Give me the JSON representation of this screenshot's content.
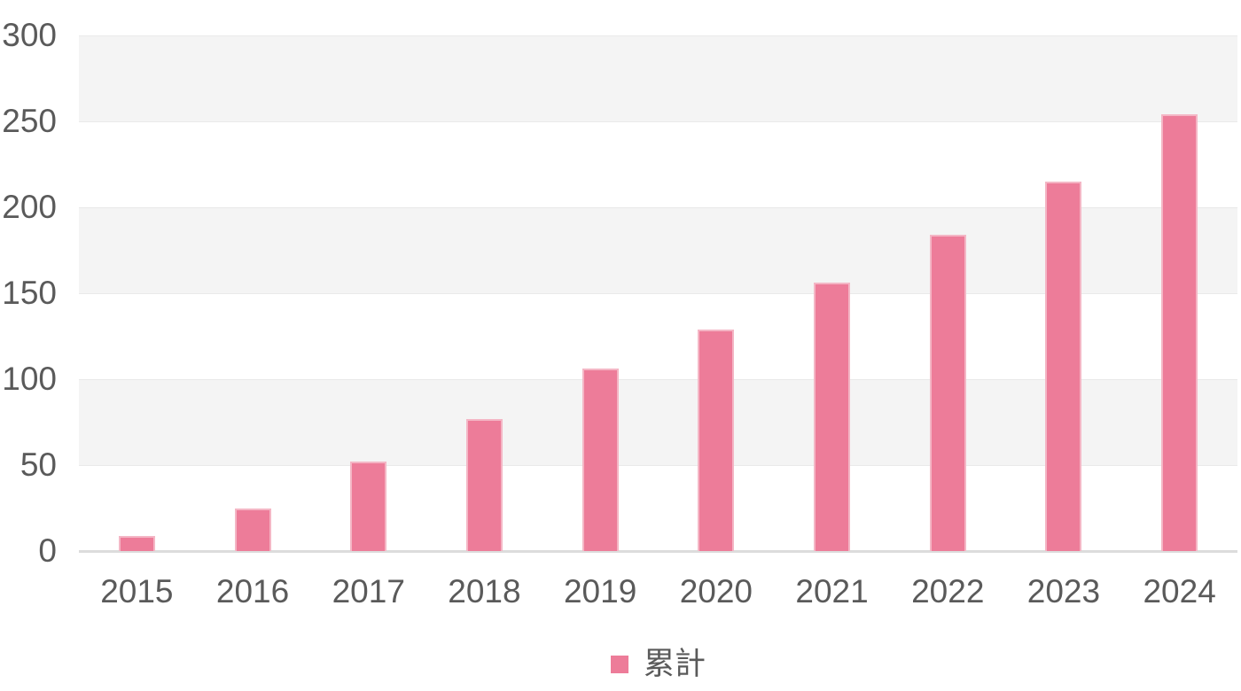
{
  "chart_data": {
    "type": "bar",
    "title": "",
    "xlabel": "",
    "ylabel": "",
    "categories": [
      "2015",
      "2016",
      "2017",
      "2018",
      "2019",
      "2020",
      "2021",
      "2022",
      "2023",
      "2024"
    ],
    "series": [
      {
        "name": "累計",
        "values": [
          9,
          25,
          52,
          77,
          106,
          129,
          156,
          184,
          215,
          254
        ]
      }
    ],
    "ylim": [
      0,
      300
    ],
    "yticks": [
      0,
      50,
      100,
      150,
      200,
      250,
      300
    ],
    "grid": true,
    "band_shading": "alternating horizontal bands, shaded from top band down",
    "legend_position": "bottom-center",
    "colors": {
      "bar_fill": "#ed7c99",
      "bar_border": "#f4b6c5",
      "band_shade": "#f4f4f4",
      "band_light": "#ffffff",
      "gridline": "#e9e9e9",
      "baseline": "#dcdcdc",
      "text": "#5a5a5a",
      "background": "#ffffff"
    }
  }
}
